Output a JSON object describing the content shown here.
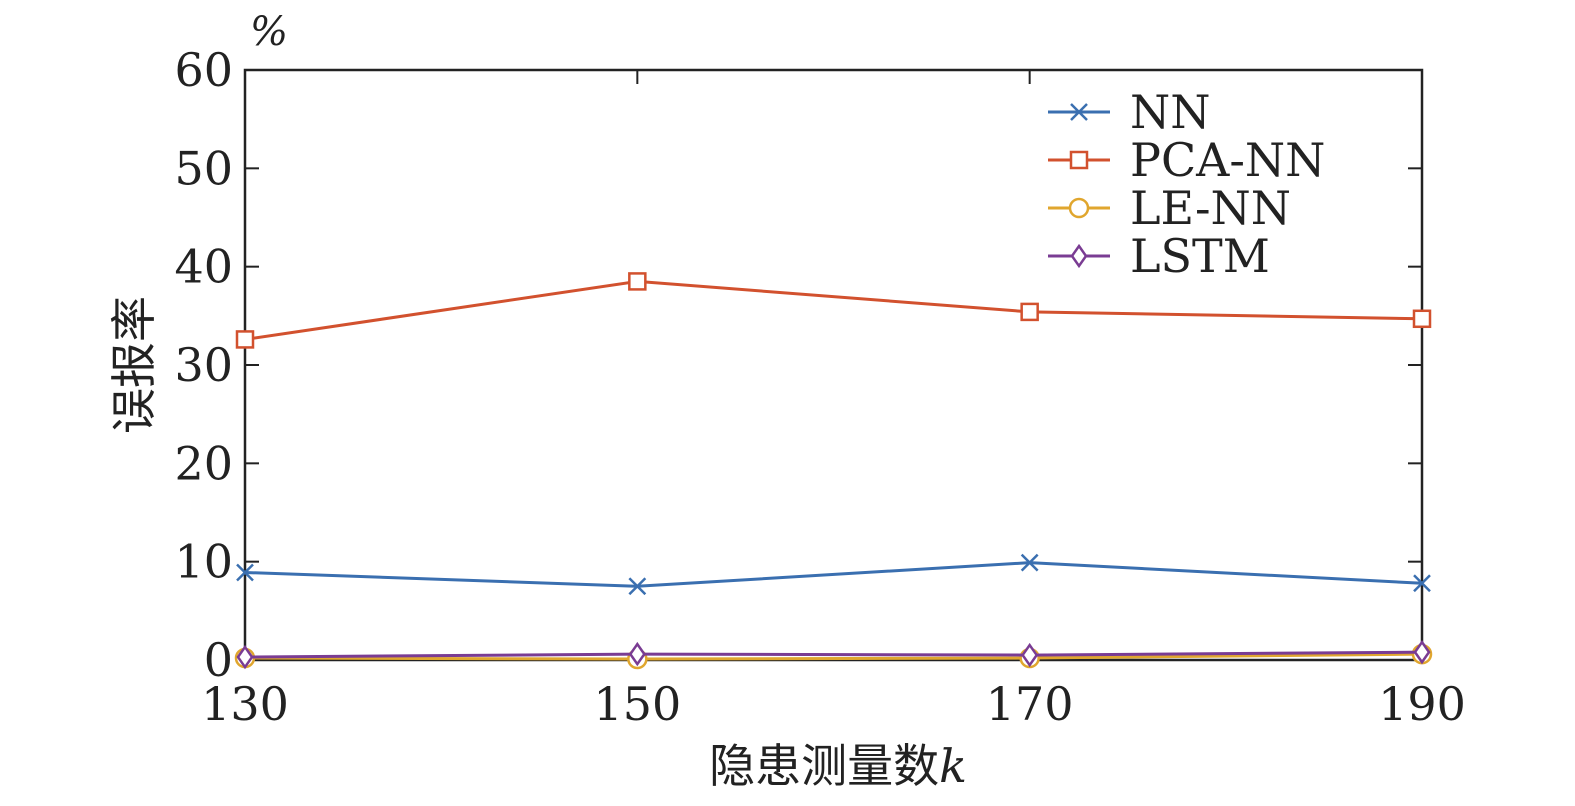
{
  "chart_data": {
    "type": "line",
    "title": "",
    "xlabel": "隐患测量数",
    "xlabel_var": "k",
    "ylabel": "误报率",
    "y_unit": "%",
    "x": [
      130,
      150,
      170,
      190
    ],
    "xticks": [
      130,
      150,
      170,
      190
    ],
    "yticks": [
      0,
      10,
      20,
      30,
      40,
      50,
      60
    ],
    "xlim": [
      130,
      190
    ],
    "ylim": [
      0,
      60
    ],
    "grid": false,
    "legend_position": "top-right",
    "series": [
      {
        "name": "NN",
        "values": [
          8.9,
          7.5,
          9.9,
          7.8
        ],
        "color": "#3a6fb0",
        "marker": "x"
      },
      {
        "name": "PCA-NN",
        "values": [
          32.6,
          38.5,
          35.4,
          34.7
        ],
        "color": "#d2512e",
        "marker": "square"
      },
      {
        "name": "LE-NN",
        "values": [
          0.2,
          0.1,
          0.2,
          0.6
        ],
        "color": "#e0a62e",
        "marker": "circle"
      },
      {
        "name": "LSTM",
        "values": [
          0.3,
          0.6,
          0.5,
          0.8
        ],
        "color": "#7a3c93",
        "marker": "diamond"
      }
    ]
  }
}
